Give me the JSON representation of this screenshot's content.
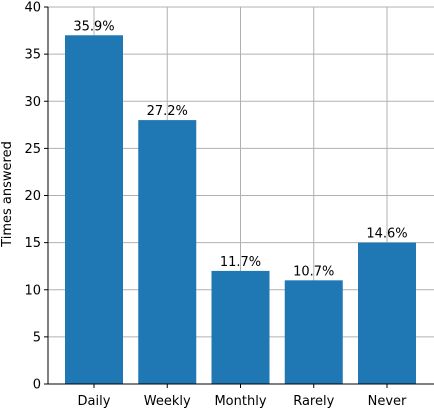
{
  "chart_data": {
    "type": "bar",
    "categories": [
      "Daily",
      "Weekly",
      "Monthly",
      "Rarely",
      "Never"
    ],
    "values": [
      37,
      28,
      12,
      11,
      15
    ],
    "data_labels": [
      "35.9%",
      "27.2%",
      "11.7%",
      "10.7%",
      "14.6%"
    ],
    "title": "",
    "xlabel": "",
    "ylabel": "Times answered",
    "ylim": [
      0,
      40
    ],
    "yticks": [
      0,
      5,
      10,
      15,
      20,
      25,
      30,
      35,
      40
    ],
    "grid": true,
    "bar_color": "#1f77b4",
    "grid_color": "#b0b0b0"
  }
}
